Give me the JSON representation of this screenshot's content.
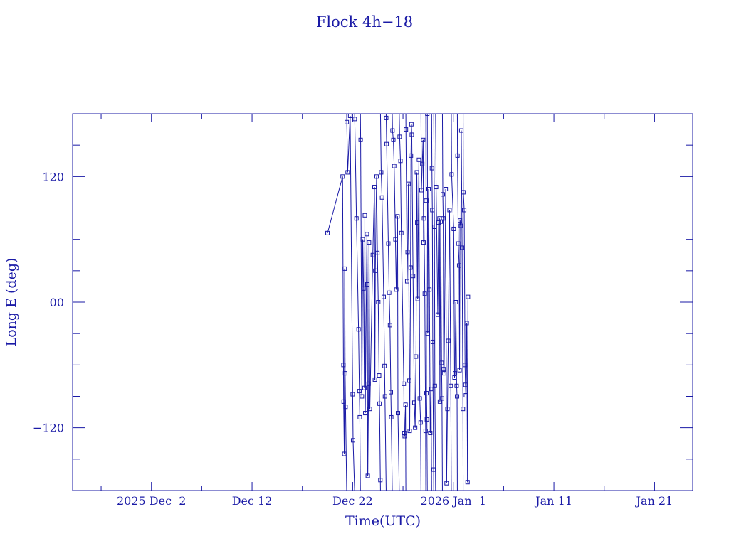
{
  "colors": {
    "foreground": "#1a1aa6",
    "background": "#ffffff"
  },
  "chart_data": {
    "type": "line",
    "title": "Flock 4h−18",
    "xlabel": "Time(UTC)",
    "ylabel": "Long E (deg)",
    "x_ticks": [
      {
        "date": "2025-12-02",
        "label": "2025 Dec  2"
      },
      {
        "date": "2025-12-12",
        "label": "Dec 12"
      },
      {
        "date": "2025-12-22",
        "label": "Dec 22"
      },
      {
        "date": "2026-01-01",
        "label": "2026 Jan  1"
      },
      {
        "date": "2026-01-11",
        "label": "Jan 11"
      },
      {
        "date": "2026-01-21",
        "label": "Jan 21"
      }
    ],
    "y_ticks": [
      {
        "value": 120,
        "label": "120"
      },
      {
        "value": 0,
        "label": "00"
      },
      {
        "value": -120,
        "label": "−120"
      }
    ],
    "xlim": [
      "2025-11-24T04:00",
      "2026-01-24T19:00"
    ],
    "ylim": [
      -180,
      180
    ],
    "grid": false,
    "series": [
      {
        "marker": "square",
        "points": [
          [
            "2025-12-19T12:00",
            66
          ],
          [
            "2025-12-21T00:00",
            120
          ],
          [
            "2025-12-21T02:00",
            -60
          ],
          [
            "2025-12-21T02:30",
            -95
          ],
          [
            "2025-12-21T04:00",
            -145
          ],
          [
            "2025-12-21T05:00",
            32
          ],
          [
            "2025-12-21T06:00",
            -68
          ],
          [
            "2025-12-21T07:00",
            -100
          ],
          [
            "2025-12-21T10:00",
            172
          ],
          [
            "2025-12-21T12:00",
            124
          ],
          [
            "2025-12-21T18:00",
            178
          ],
          [
            "2025-12-22T00:00",
            -88
          ],
          [
            "2025-12-22T01:00",
            -132
          ],
          [
            "2025-12-22T05:00",
            175
          ],
          [
            "2025-12-22T09:00",
            80
          ],
          [
            "2025-12-22T14:00",
            -26
          ],
          [
            "2025-12-22T16:00",
            -85
          ],
          [
            "2025-12-22T17:00",
            -110
          ],
          [
            "2025-12-22T19:00",
            155
          ],
          [
            "2025-12-22T22:00",
            -90
          ],
          [
            "2025-12-23T00:00",
            60
          ],
          [
            "2025-12-23T02:00",
            13
          ],
          [
            "2025-12-23T04:00",
            -82
          ],
          [
            "2025-12-23T05:00",
            83
          ],
          [
            "2025-12-23T06:00",
            -106
          ],
          [
            "2025-12-23T10:00",
            65
          ],
          [
            "2025-12-23T11:00",
            17
          ],
          [
            "2025-12-23T12:00",
            -166
          ],
          [
            "2025-12-23T14:00",
            -78
          ],
          [
            "2025-12-23T15:00",
            57
          ],
          [
            "2025-12-23T17:00",
            -102
          ],
          [
            "2025-12-24T00:00",
            45
          ],
          [
            "2025-12-24T04:00",
            110
          ],
          [
            "2025-12-24T05:00",
            -74
          ],
          [
            "2025-12-24T06:00",
            30
          ],
          [
            "2025-12-24T09:00",
            120
          ],
          [
            "2025-12-24T11:00",
            47
          ],
          [
            "2025-12-24T13:00",
            0
          ],
          [
            "2025-12-24T15:00",
            -70
          ],
          [
            "2025-12-24T16:00",
            -97
          ],
          [
            "2025-12-24T18:00",
            -170
          ],
          [
            "2025-12-24T20:00",
            124
          ],
          [
            "2025-12-24T22:00",
            100
          ],
          [
            "2025-12-25T02:00",
            5
          ],
          [
            "2025-12-25T04:00",
            -61
          ],
          [
            "2025-12-25T05:00",
            -90
          ],
          [
            "2025-12-25T08:00",
            176
          ],
          [
            "2025-12-25T09:00",
            151
          ],
          [
            "2025-12-25T13:00",
            56
          ],
          [
            "2025-12-25T15:00",
            9
          ],
          [
            "2025-12-25T17:00",
            -22
          ],
          [
            "2025-12-25T19:00",
            -86
          ],
          [
            "2025-12-25T20:00",
            -110
          ],
          [
            "2025-12-25T23:00",
            164
          ],
          [
            "2025-12-26T01:00",
            155
          ],
          [
            "2025-12-26T03:00",
            130
          ],
          [
            "2025-12-26T06:00",
            60
          ],
          [
            "2025-12-26T08:00",
            12
          ],
          [
            "2025-12-26T11:00",
            82
          ],
          [
            "2025-12-26T12:00",
            -106
          ],
          [
            "2025-12-26T16:00",
            158
          ],
          [
            "2025-12-26T18:00",
            135
          ],
          [
            "2025-12-26T20:00",
            66
          ],
          [
            "2025-12-27T02:00",
            -78
          ],
          [
            "2025-12-27T03:00",
            -125
          ],
          [
            "2025-12-27T04:00",
            -128
          ],
          [
            "2025-12-27T06:00",
            -98
          ],
          [
            "2025-12-27T07:00",
            165
          ],
          [
            "2025-12-27T10:00",
            20
          ],
          [
            "2025-12-27T11:00",
            48
          ],
          [
            "2025-12-27T13:00",
            113
          ],
          [
            "2025-12-27T15:00",
            -75
          ],
          [
            "2025-12-27T16:00",
            -123
          ],
          [
            "2025-12-27T18:00",
            33
          ],
          [
            "2025-12-27T19:00",
            140
          ],
          [
            "2025-12-27T20:00",
            170
          ],
          [
            "2025-12-27T21:00",
            160
          ],
          [
            "2025-12-28T00:00",
            25
          ],
          [
            "2025-12-28T03:00",
            -96
          ],
          [
            "2025-12-28T05:00",
            -120
          ],
          [
            "2025-12-28T07:00",
            -52
          ],
          [
            "2025-12-28T09:00",
            124
          ],
          [
            "2025-12-28T10:00",
            76
          ],
          [
            "2025-12-28T11:00",
            3
          ],
          [
            "2025-12-28T14:00",
            136
          ],
          [
            "2025-12-28T16:00",
            -92
          ],
          [
            "2025-12-28T18:00",
            -115
          ],
          [
            "2025-12-28T20:00",
            107
          ],
          [
            "2025-12-28T22:00",
            132
          ],
          [
            "2025-12-29T00:00",
            155
          ],
          [
            "2025-12-29T01:00",
            57
          ],
          [
            "2025-12-29T02:00",
            80
          ],
          [
            "2025-12-29T04:00",
            8
          ],
          [
            "2025-12-29T06:00",
            -123
          ],
          [
            "2025-12-29T07:00",
            97
          ],
          [
            "2025-12-29T08:00",
            -87
          ],
          [
            "2025-12-29T09:00",
            -112
          ],
          [
            "2025-12-29T10:00",
            180
          ],
          [
            "2025-12-29T11:00",
            -30
          ],
          [
            "2025-12-29T13:00",
            108
          ],
          [
            "2025-12-29T15:00",
            12
          ],
          [
            "2025-12-29T17:00",
            -125
          ],
          [
            "2025-12-29T19:00",
            -83
          ],
          [
            "2025-12-29T21:00",
            128
          ],
          [
            "2025-12-29T22:00",
            88
          ],
          [
            "2025-12-29T23:00",
            -38
          ],
          [
            "2025-12-30T01:00",
            -160
          ],
          [
            "2025-12-30T03:00",
            72
          ],
          [
            "2025-12-30T04:00",
            -80
          ],
          [
            "2025-12-30T07:00",
            110
          ],
          [
            "2025-12-30T11:00",
            -12
          ],
          [
            "2025-12-30T13:00",
            76
          ],
          [
            "2025-12-30T15:00",
            80
          ],
          [
            "2025-12-30T16:00",
            -95
          ],
          [
            "2025-12-30T18:00",
            77
          ],
          [
            "2025-12-30T20:00",
            -58
          ],
          [
            "2025-12-30T21:00",
            -92
          ],
          [
            "2025-12-30T23:00",
            103
          ],
          [
            "2025-12-31T00:00",
            80
          ],
          [
            "2025-12-31T01:00",
            -64
          ],
          [
            "2025-12-31T02:00",
            -68
          ],
          [
            "2025-12-31T06:00",
            108
          ],
          [
            "2025-12-31T08:00",
            -173
          ],
          [
            "2025-12-31T10:00",
            -102
          ],
          [
            "2025-12-31T12:00",
            -37
          ],
          [
            "2025-12-31T15:00",
            88
          ],
          [
            "2025-12-31T18:00",
            -80
          ],
          [
            "2025-12-31T20:00",
            122
          ],
          [
            "2026-01-01T01:00",
            70
          ],
          [
            "2026-01-01T03:00",
            -72
          ],
          [
            "2026-01-01T04:00",
            -68
          ],
          [
            "2026-01-01T06:00",
            0
          ],
          [
            "2026-01-01T08:00",
            -80
          ],
          [
            "2026-01-01T09:00",
            -90
          ],
          [
            "2026-01-01T10:00",
            140
          ],
          [
            "2026-01-01T12:00",
            56
          ],
          [
            "2026-01-01T14:00",
            35
          ],
          [
            "2026-01-01T15:00",
            -65
          ],
          [
            "2026-01-01T16:00",
            78
          ],
          [
            "2026-01-01T18:00",
            73
          ],
          [
            "2026-01-01T19:00",
            164
          ],
          [
            "2026-01-01T21:00",
            52
          ],
          [
            "2026-01-01T23:00",
            -102
          ],
          [
            "2026-01-02T00:00",
            105
          ],
          [
            "2026-01-02T02:00",
            88
          ],
          [
            "2026-01-02T04:00",
            -60
          ],
          [
            "2026-01-02T05:00",
            -79
          ],
          [
            "2026-01-02T06:00",
            -89
          ],
          [
            "2026-01-02T08:00",
            -20
          ],
          [
            "2026-01-02T10:00",
            -172
          ],
          [
            "2026-01-02T11:00",
            5
          ]
        ]
      }
    ]
  }
}
